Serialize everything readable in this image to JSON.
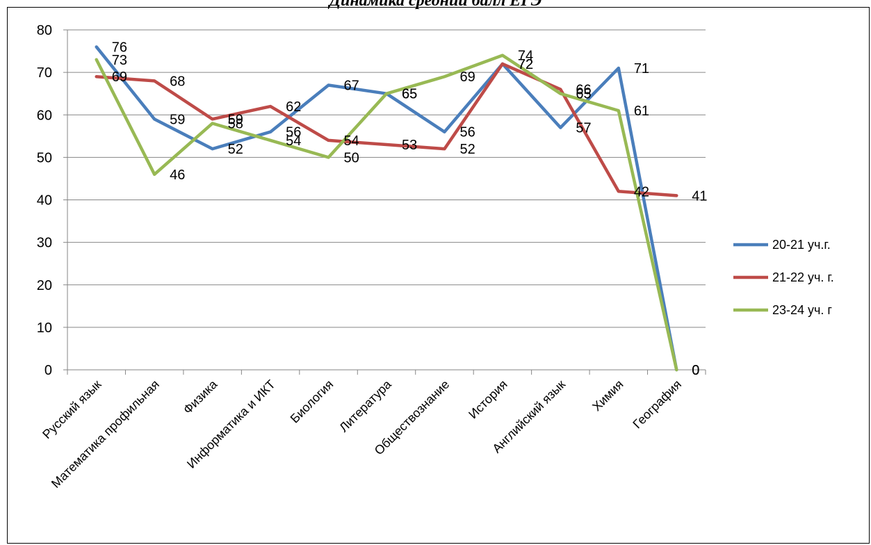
{
  "chart_data": {
    "type": "line",
    "title": "Динамика средний балл ЕГЭ",
    "categories": [
      "Русский язык",
      "Математика профильная",
      "Физика",
      "Информатика и ИКТ",
      "Биология",
      "Литература",
      "Обществознание",
      "История",
      "Английский язык",
      "Химия",
      "География"
    ],
    "y_ticks": [
      "0",
      "10",
      "20",
      "30",
      "40",
      "50",
      "60",
      "70",
      "80"
    ],
    "ylim": [
      0,
      80
    ],
    "grid": true,
    "legend_position": "right",
    "series": [
      {
        "name": "20-21 уч.г.",
        "color": "#4A7EBB",
        "values": [
          76,
          59,
          52,
          56,
          67,
          65,
          56,
          72,
          57,
          71,
          0
        ]
      },
      {
        "name": "21-22 уч. г.",
        "color": "#BE4B48",
        "values": [
          69,
          68,
          59,
          62,
          54,
          53,
          52,
          72,
          66,
          42,
          41
        ]
      },
      {
        "name": "23-24 уч. г",
        "color": "#98B954",
        "values": [
          73,
          46,
          58,
          54,
          50,
          65,
          69,
          74,
          65,
          61,
          0
        ]
      }
    ]
  }
}
